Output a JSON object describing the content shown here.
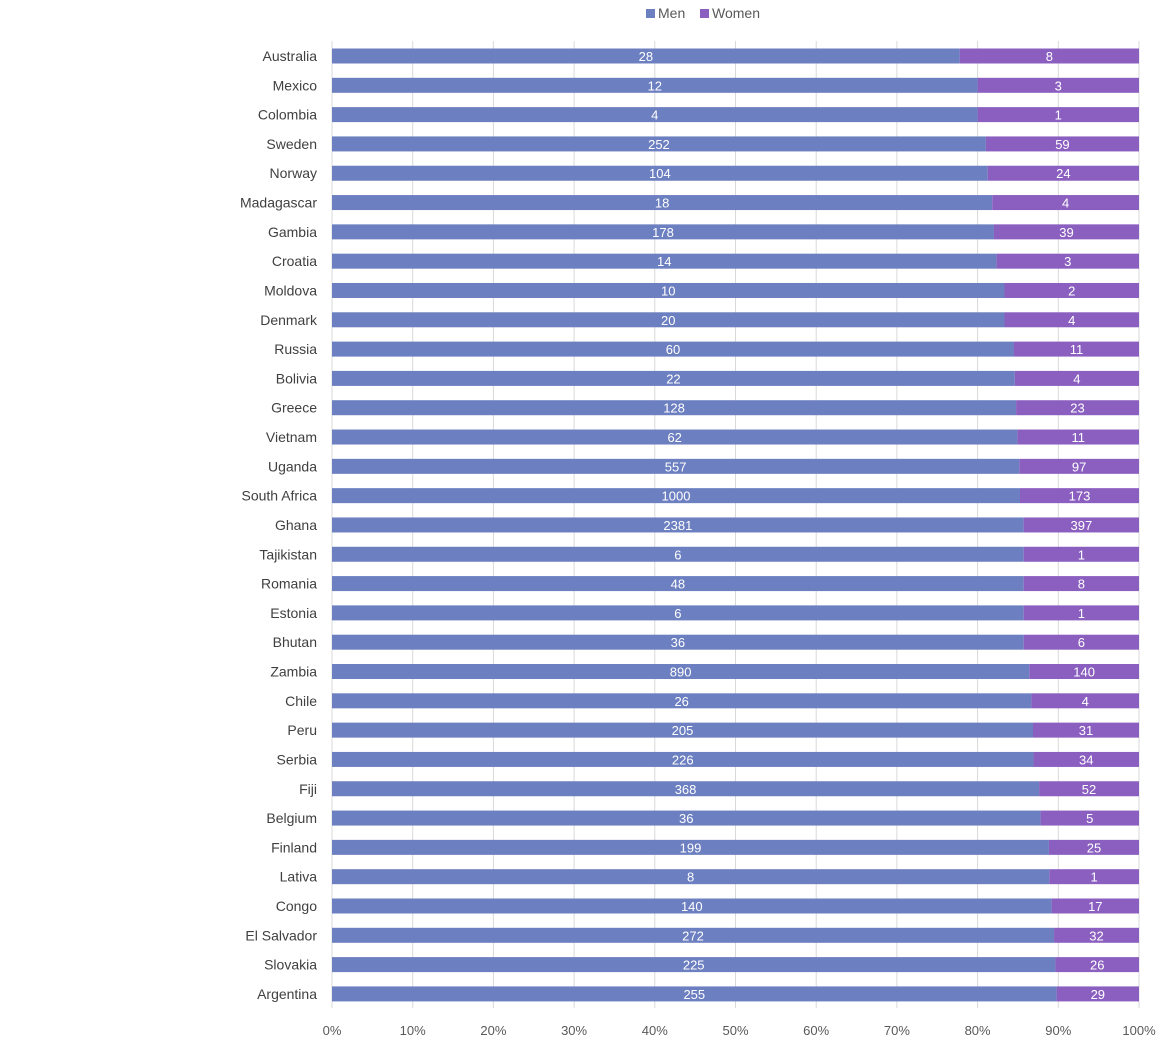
{
  "chart_data": {
    "type": "bar",
    "orientation": "horizontal",
    "stacking": "percent",
    "categories": [
      "Australia",
      "Mexico",
      "Colombia",
      "Sweden",
      "Norway",
      "Madagascar",
      "Gambia",
      "Croatia",
      "Moldova",
      "Denmark",
      "Russia",
      "Bolivia",
      "Greece",
      "Vietnam",
      "Uganda",
      "South Africa",
      "Ghana",
      "Tajikistan",
      "Romania",
      "Estonia",
      "Bhutan",
      "Zambia",
      "Chile",
      "Peru",
      "Serbia",
      "Fiji",
      "Belgium",
      "Finland",
      "Lativa",
      "Congo",
      "El Salvador",
      "Slovakia",
      "Argentina"
    ],
    "series": [
      {
        "name": "Men",
        "color": "#6c7fc0",
        "values": [
          28,
          12,
          4,
          252,
          104,
          18,
          178,
          14,
          10,
          20,
          60,
          22,
          128,
          62,
          557,
          1000,
          2381,
          6,
          48,
          6,
          36,
          890,
          26,
          205,
          226,
          368,
          36,
          199,
          8,
          140,
          272,
          225,
          255
        ]
      },
      {
        "name": "Women",
        "color": "#8b5fc0",
        "values": [
          8,
          3,
          1,
          59,
          24,
          4,
          39,
          3,
          2,
          4,
          11,
          4,
          23,
          11,
          97,
          173,
          397,
          1,
          8,
          1,
          6,
          140,
          4,
          31,
          34,
          52,
          5,
          25,
          1,
          17,
          32,
          26,
          29
        ]
      }
    ],
    "x_ticks": [
      "0%",
      "10%",
      "20%",
      "30%",
      "40%",
      "50%",
      "60%",
      "70%",
      "80%",
      "90%",
      "100%"
    ],
    "xlim": [
      0,
      100
    ],
    "grid": true,
    "legend_position": "top-center",
    "title": "",
    "xlabel": "",
    "ylabel": ""
  }
}
